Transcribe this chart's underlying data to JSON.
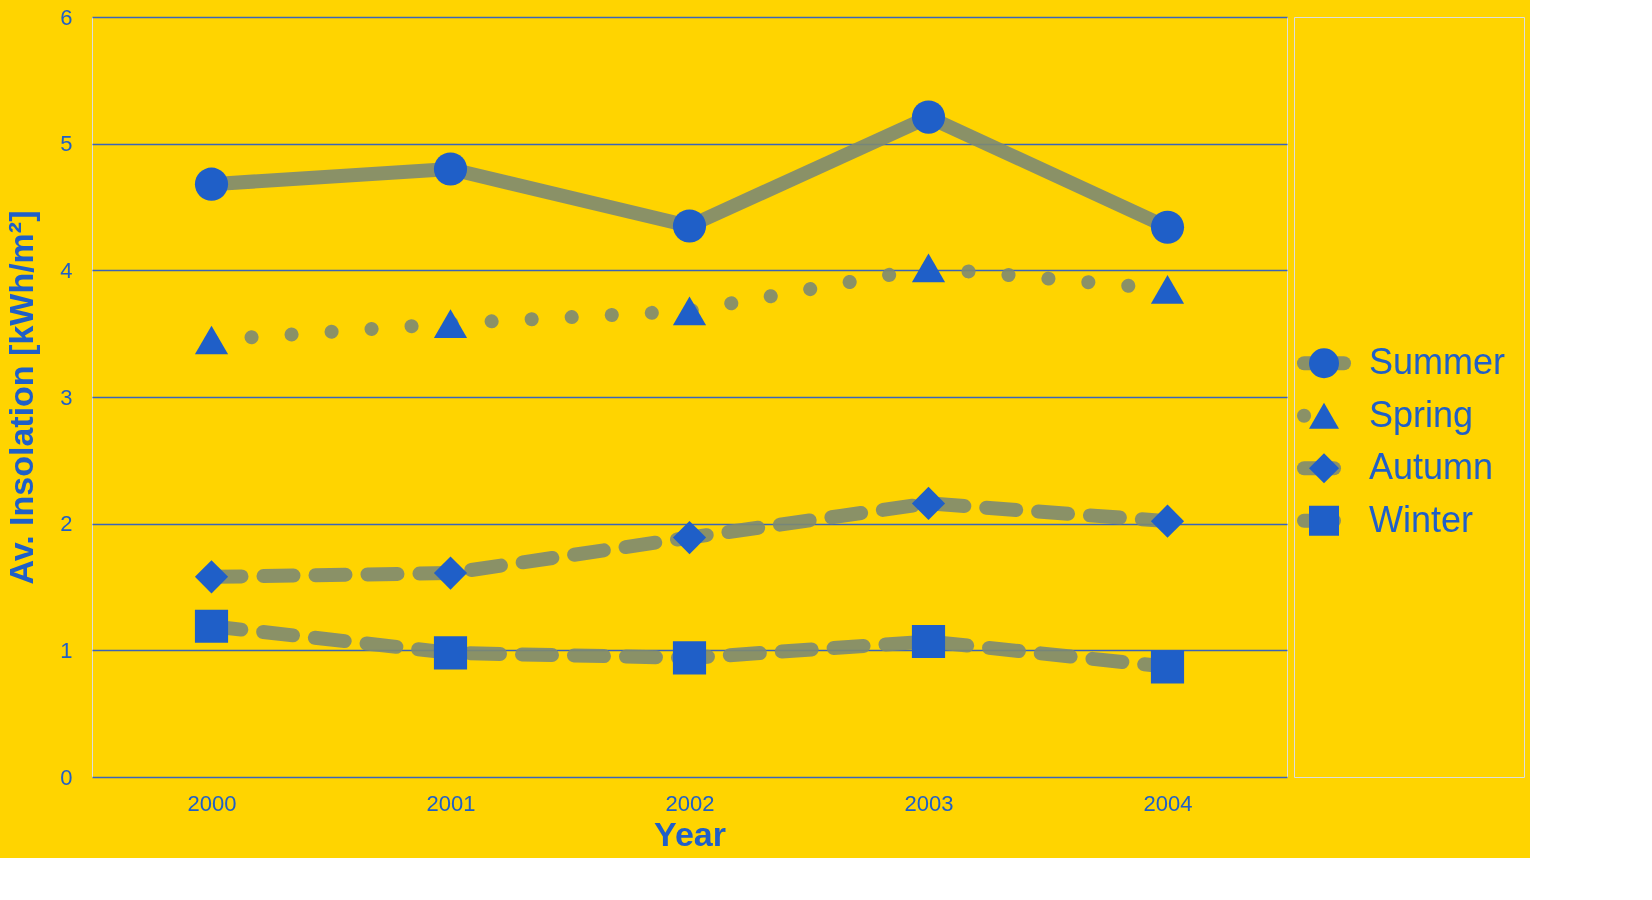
{
  "chart_data": {
    "type": "line",
    "xlabel": "Year",
    "ylabel": "Av. Insolation [kWh/m²]",
    "categories": [
      "2000",
      "2001",
      "2002",
      "2003",
      "2004"
    ],
    "series": [
      {
        "name": "Summer",
        "color": "#1f5fc8",
        "marker": "circle",
        "line_style": "solid",
        "values": [
          4.68,
          4.8,
          4.35,
          5.21,
          4.34
        ]
      },
      {
        "name": "Spring",
        "color": "#1f5fc8",
        "marker": "triangle",
        "line_style": "dotted",
        "values": [
          3.45,
          3.58,
          3.68,
          4.02,
          3.85
        ]
      },
      {
        "name": "Autumn",
        "color": "#1f5fc8",
        "marker": "diamond",
        "line_style": "dashed",
        "values": [
          1.58,
          1.61,
          1.89,
          2.16,
          2.02
        ]
      },
      {
        "name": "Winter",
        "color": "#1f5fc8",
        "marker": "square",
        "line_style": "dashed",
        "values": [
          1.19,
          0.98,
          0.94,
          1.07,
          0.87
        ]
      }
    ],
    "ylim": [
      0,
      6
    ],
    "yticks": [
      0,
      1,
      2,
      3,
      4,
      5,
      6
    ],
    "grid": "y",
    "legend": "right"
  }
}
